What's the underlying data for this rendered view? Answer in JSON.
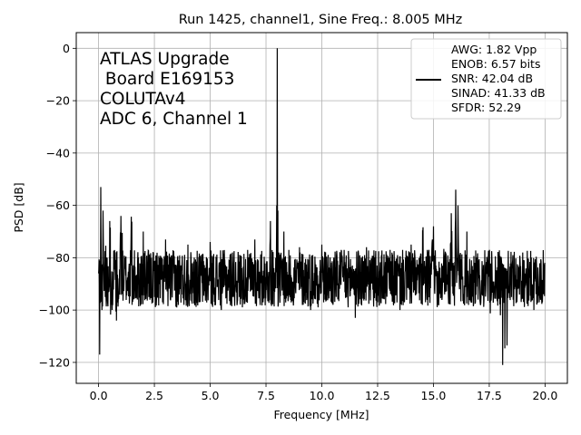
{
  "chart_data": {
    "type": "line",
    "title": "Run 1425, channel1, Sine Freq.: 8.005 MHz",
    "xlabel": "Frequency [MHz]",
    "ylabel": "PSD [dB]",
    "xlim": [
      -1.0,
      21.0
    ],
    "ylim": [
      -128,
      6
    ],
    "xticks": [
      0.0,
      2.5,
      5.0,
      7.5,
      10.0,
      12.5,
      15.0,
      17.5,
      20.0
    ],
    "xtick_labels": [
      "0.0",
      "2.5",
      "5.0",
      "7.5",
      "10.0",
      "12.5",
      "15.0",
      "17.5",
      "20.0"
    ],
    "yticks": [
      0,
      -20,
      -40,
      -60,
      -80,
      -100,
      -120
    ],
    "ytick_labels": [
      "0",
      "−20",
      "−40",
      "−60",
      "−80",
      "−100",
      "−120"
    ],
    "grid": true,
    "annotation_lines": [
      "ATLAS Upgrade",
      " Board E169153",
      "COLUTAv4",
      "ADC 6, Channel 1"
    ],
    "legend": {
      "placement": "top-right",
      "lines": [
        "AWG: 1.82 Vpp",
        "ENOB: 6.57 bits",
        "SNR: 42.04 dB",
        "SINAD: 41.33 dB",
        "SFDR: 52.29"
      ]
    },
    "series": [
      {
        "color": "#000000",
        "x": [
          0.0,
          0.05,
          0.1,
          0.15,
          0.2,
          0.3,
          0.5,
          0.8,
          1.0,
          1.5,
          2.0,
          2.5,
          3.0,
          3.5,
          4.0,
          4.5,
          5.0,
          5.5,
          6.0,
          6.5,
          7.0,
          7.5,
          7.7,
          7.9,
          7.98,
          8.005,
          8.03,
          8.1,
          8.3,
          8.5,
          9.0,
          9.5,
          10.0,
          10.5,
          11.0,
          11.5,
          12.0,
          12.5,
          13.0,
          13.5,
          14.0,
          14.5,
          15.0,
          15.5,
          15.8,
          16.0,
          16.1,
          16.3,
          16.5,
          17.0,
          17.5,
          18.0,
          18.1,
          18.5,
          19.0,
          19.5,
          20.0
        ],
        "y": [
          -86,
          -117,
          -53,
          -100,
          -62,
          -95,
          -66,
          -104,
          -64,
          -98,
          -70,
          -95,
          -73,
          -99,
          -75,
          -97,
          -74,
          -100,
          -78,
          -96,
          -73,
          -92,
          -66,
          -88,
          -60,
          0,
          -62,
          -88,
          -70,
          -95,
          -76,
          -100,
          -75,
          -98,
          -77,
          -103,
          -76,
          -97,
          -80,
          -100,
          -75,
          -98,
          -68,
          -94,
          -63,
          -54,
          -60,
          -88,
          -70,
          -96,
          -80,
          -102,
          -121,
          -95,
          -78,
          -100,
          -82
        ]
      }
    ]
  }
}
